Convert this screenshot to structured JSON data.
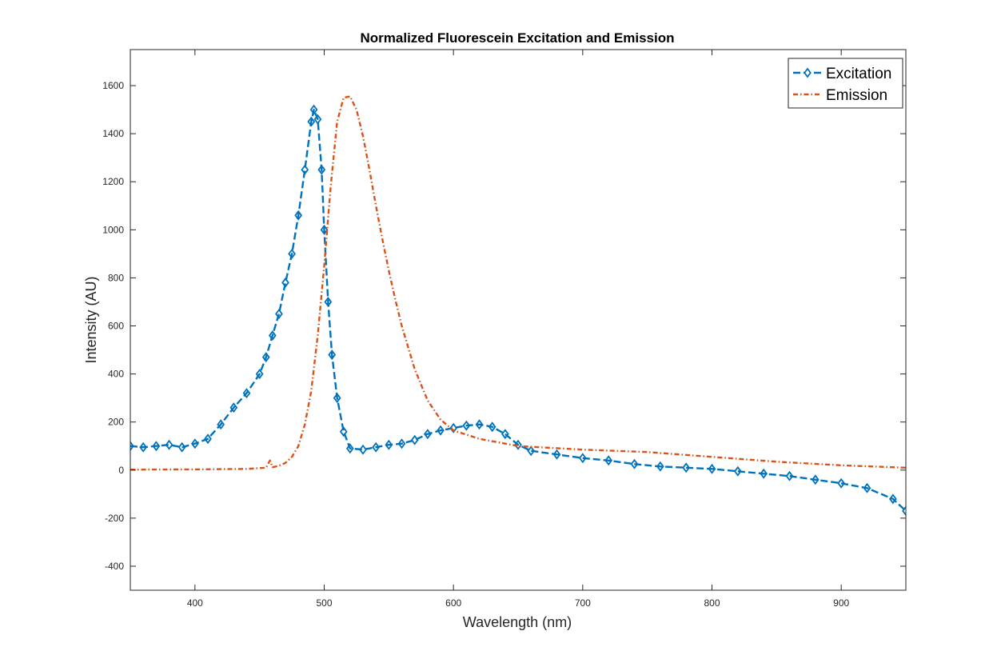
{
  "chart_data": {
    "type": "line",
    "title": "Normalized Fluorescein Excitation and Emission",
    "xlabel": "Wavelength (nm)",
    "ylabel": "Intensity (AU)",
    "xlim": [
      350,
      950
    ],
    "ylim": [
      -500,
      1750
    ],
    "xticks": [
      400,
      500,
      600,
      700,
      800,
      900
    ],
    "yticks": [
      -400,
      -200,
      0,
      200,
      400,
      600,
      800,
      1000,
      1200,
      1400,
      1600
    ],
    "grid": false,
    "legend": "top-right",
    "series": [
      {
        "name": "Excitation",
        "color": "#0072BD",
        "style": "dashed",
        "marker": "diamond",
        "x": [
          350,
          360,
          370,
          380,
          390,
          400,
          410,
          420,
          430,
          440,
          450,
          455,
          460,
          465,
          470,
          475,
          480,
          485,
          490,
          492,
          495,
          498,
          500,
          503,
          506,
          510,
          515,
          520,
          530,
          540,
          550,
          560,
          570,
          580,
          590,
          600,
          610,
          620,
          630,
          640,
          650,
          660,
          680,
          700,
          720,
          740,
          760,
          780,
          800,
          820,
          840,
          860,
          880,
          900,
          920,
          940,
          950
        ],
        "values": [
          100,
          95,
          100,
          105,
          95,
          110,
          130,
          190,
          260,
          320,
          400,
          470,
          560,
          650,
          780,
          900,
          1060,
          1250,
          1450,
          1500,
          1460,
          1250,
          1000,
          700,
          480,
          300,
          160,
          90,
          85,
          95,
          105,
          110,
          125,
          150,
          165,
          175,
          185,
          190,
          180,
          150,
          105,
          80,
          65,
          50,
          40,
          25,
          15,
          10,
          5,
          -5,
          -15,
          -25,
          -40,
          -55,
          -75,
          -120,
          -170
        ]
      },
      {
        "name": "Emission",
        "color": "#D95319",
        "style": "dash-dot",
        "marker": "none",
        "x": [
          350,
          400,
          440,
          455,
          458,
          460,
          465,
          470,
          475,
          480,
          485,
          490,
          495,
          500,
          505,
          510,
          515,
          520,
          525,
          530,
          535,
          540,
          545,
          550,
          555,
          560,
          570,
          580,
          590,
          600,
          620,
          650,
          700,
          750,
          800,
          850,
          900,
          950
        ],
        "values": [
          2,
          3,
          5,
          10,
          40,
          12,
          18,
          30,
          55,
          100,
          190,
          330,
          560,
          850,
          1180,
          1450,
          1550,
          1555,
          1500,
          1390,
          1250,
          1100,
          960,
          830,
          710,
          600,
          420,
          290,
          210,
          165,
          130,
          100,
          85,
          75,
          55,
          35,
          20,
          10
        ]
      }
    ]
  }
}
